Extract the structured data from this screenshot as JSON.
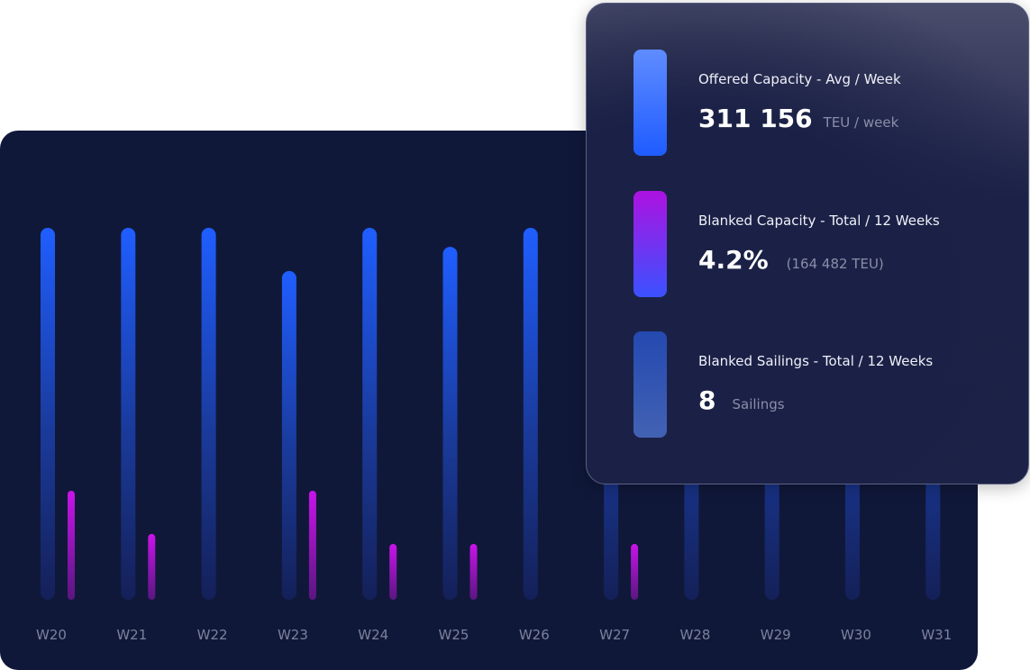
{
  "chart_data": {
    "type": "bar",
    "categories": [
      "W20",
      "W21",
      "W22",
      "W23",
      "W24",
      "W25",
      "W26",
      "W27",
      "W28",
      "W29",
      "W30",
      "W31"
    ],
    "series": [
      {
        "values": [
          100,
          100,
          100,
          88.4,
          100,
          94.9,
          100,
          100,
          100,
          100,
          100,
          100
        ],
        "color": "#1f5cff"
      },
      {
        "values": [
          29.3,
          17.7,
          0,
          29.3,
          15.0,
          15.0,
          0,
          15.0,
          0,
          0,
          0,
          0
        ],
        "color": "#c414e6"
      }
    ],
    "ylim": [
      0,
      100
    ],
    "grid": false,
    "xlabel": "",
    "ylabel": "",
    "title": ""
  },
  "summary": {
    "stats": [
      {
        "title": "Offered Capacity - Avg / Week",
        "value": "311 156",
        "unit": "TEU / week",
        "color": "#2b66ff"
      },
      {
        "title": "Blanked Capacity - Total / 12 Weeks",
        "value": "4.2%",
        "unit": "(164 482 TEU)",
        "color": "#a913e0"
      },
      {
        "title": "Blanked Sailings - Total / 12 Weeks",
        "value": "8",
        "unit": "Sailings",
        "color": "#2649b0"
      }
    ]
  }
}
